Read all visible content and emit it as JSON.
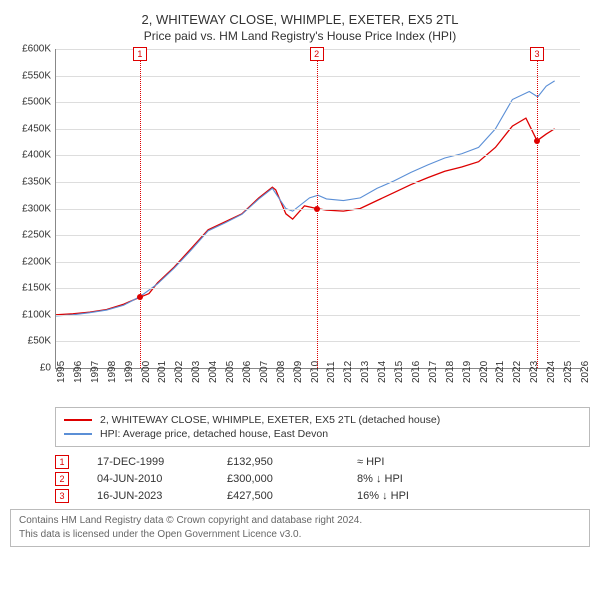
{
  "title": "2, WHITEWAY CLOSE, WHIMPLE, EXETER, EX5 2TL",
  "subtitle": "Price paid vs. HM Land Registry's House Price Index (HPI)",
  "chart": {
    "type": "line",
    "x_start": 1995,
    "x_end": 2026,
    "xtick_step": 1,
    "y_start": 0,
    "y_end": 600000,
    "ytick_step": 50000,
    "y_prefix": "£",
    "y_suffix": "K",
    "y_divisor": 1000,
    "background_color": "#ffffff",
    "grid_color": "#dddddd",
    "axis_color": "#888888",
    "label_fontsize": 10,
    "series": [
      {
        "id": "property",
        "label": "2, WHITEWAY CLOSE, WHIMPLE, EXETER, EX5 2TL (detached house)",
        "color": "#dd0000",
        "width": 1.3,
        "data": [
          [
            1995,
            100000
          ],
          [
            1996,
            102000
          ],
          [
            1997,
            105000
          ],
          [
            1998,
            110000
          ],
          [
            1999,
            120000
          ],
          [
            1999.96,
            132950
          ],
          [
            2000.5,
            140000
          ],
          [
            2001,
            160000
          ],
          [
            2002,
            190000
          ],
          [
            2003,
            225000
          ],
          [
            2004,
            260000
          ],
          [
            2005,
            275000
          ],
          [
            2006,
            290000
          ],
          [
            2007,
            320000
          ],
          [
            2007.8,
            340000
          ],
          [
            2008,
            335000
          ],
          [
            2008.6,
            290000
          ],
          [
            2009,
            280000
          ],
          [
            2009.7,
            305000
          ],
          [
            2010.42,
            300000
          ],
          [
            2011,
            297000
          ],
          [
            2012,
            295000
          ],
          [
            2013,
            300000
          ],
          [
            2014,
            315000
          ],
          [
            2015,
            330000
          ],
          [
            2016,
            345000
          ],
          [
            2017,
            358000
          ],
          [
            2018,
            370000
          ],
          [
            2019,
            378000
          ],
          [
            2020,
            388000
          ],
          [
            2021,
            415000
          ],
          [
            2022,
            455000
          ],
          [
            2022.8,
            470000
          ],
          [
            2023.46,
            427500
          ],
          [
            2024,
            440000
          ],
          [
            2024.5,
            450000
          ]
        ]
      },
      {
        "id": "hpi",
        "label": "HPI: Average price, detached house, East Devon",
        "color": "#5b8fd6",
        "width": 1.1,
        "data": [
          [
            1995,
            98000
          ],
          [
            1996,
            100000
          ],
          [
            1997,
            104000
          ],
          [
            1998,
            109000
          ],
          [
            1999,
            118000
          ],
          [
            2000,
            135000
          ],
          [
            2001,
            158000
          ],
          [
            2002,
            188000
          ],
          [
            2003,
            222000
          ],
          [
            2004,
            258000
          ],
          [
            2005,
            273000
          ],
          [
            2006,
            289000
          ],
          [
            2007,
            318000
          ],
          [
            2007.8,
            338000
          ],
          [
            2008.6,
            300000
          ],
          [
            2009,
            295000
          ],
          [
            2010,
            320000
          ],
          [
            2010.5,
            325000
          ],
          [
            2011,
            318000
          ],
          [
            2012,
            315000
          ],
          [
            2013,
            320000
          ],
          [
            2014,
            338000
          ],
          [
            2015,
            352000
          ],
          [
            2016,
            368000
          ],
          [
            2017,
            382000
          ],
          [
            2018,
            395000
          ],
          [
            2019,
            403000
          ],
          [
            2020,
            415000
          ],
          [
            2021,
            450000
          ],
          [
            2022,
            505000
          ],
          [
            2023,
            520000
          ],
          [
            2023.5,
            510000
          ],
          [
            2024,
            530000
          ],
          [
            2024.5,
            540000
          ]
        ]
      }
    ],
    "sale_markers": [
      {
        "n": "1",
        "x": 1999.96,
        "y": 132950
      },
      {
        "n": "2",
        "x": 2010.42,
        "y": 300000
      },
      {
        "n": "3",
        "x": 2023.46,
        "y": 427500
      }
    ],
    "marker_color": "#dd0000"
  },
  "legend": {
    "rows": [
      {
        "color": "#dd0000",
        "label_path": "chart.series.0.label"
      },
      {
        "color": "#5b8fd6",
        "label_path": "chart.series.1.label"
      }
    ]
  },
  "sales": [
    {
      "n": "1",
      "date": "17-DEC-1999",
      "price": "£132,950",
      "hpi": "≈ HPI"
    },
    {
      "n": "2",
      "date": "04-JUN-2010",
      "price": "£300,000",
      "hpi": "8% ↓ HPI"
    },
    {
      "n": "3",
      "date": "16-JUN-2023",
      "price": "£427,500",
      "hpi": "16% ↓ HPI"
    }
  ],
  "footer": {
    "line1": "Contains HM Land Registry data © Crown copyright and database right 2024.",
    "line2": "This data is licensed under the Open Government Licence v3.0."
  }
}
